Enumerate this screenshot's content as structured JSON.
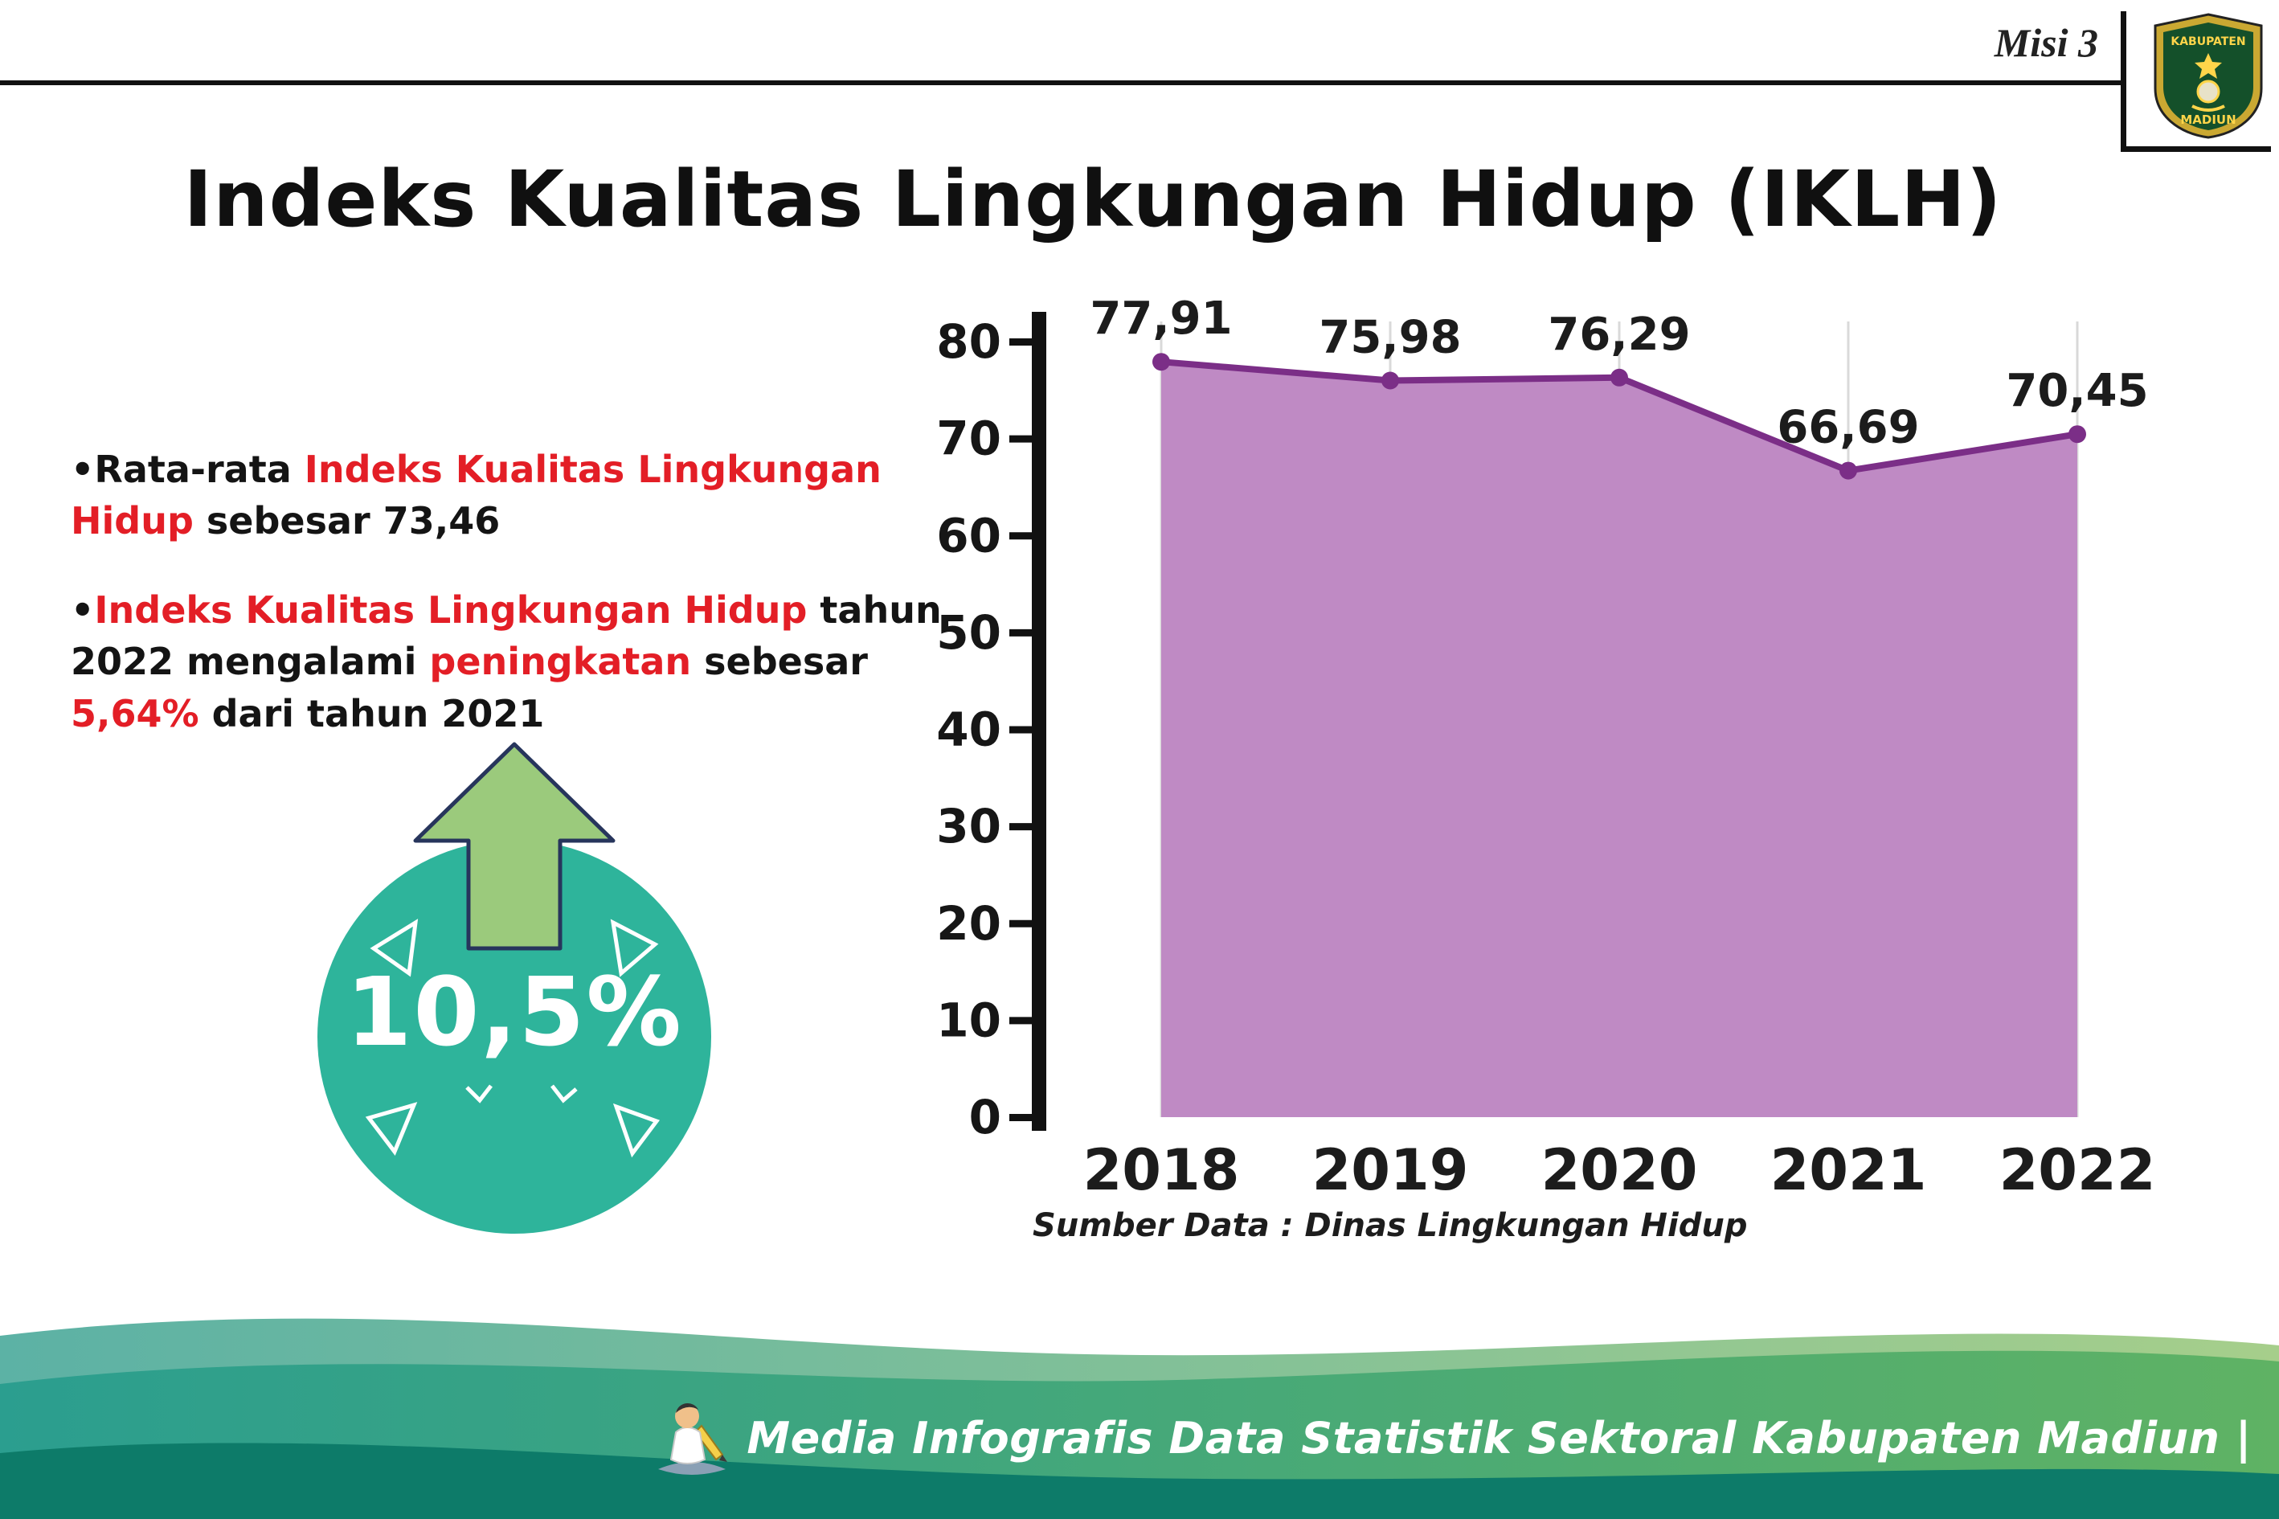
{
  "header": {
    "misi_label": "Misi 3",
    "title": "Indeks Kualitas Lingkungan Hidup (IKLH)"
  },
  "logo": {
    "name": "kabupaten-madiun-emblem",
    "top_text": "KABUPATEN",
    "bottom_text": "MADIUN"
  },
  "bullets": [
    {
      "marker": "•",
      "segments": [
        {
          "text": "Rata-rata ",
          "color": "black"
        },
        {
          "text": "Indeks Kualitas Lingkungan Hidup",
          "color": "red"
        },
        {
          "text": " sebesar 73,46",
          "color": "black"
        }
      ]
    },
    {
      "marker": "•",
      "segments": [
        {
          "text": "Indeks Kualitas Lingkungan Hidup",
          "color": "red"
        },
        {
          "text": " tahun 2022 mengalami ",
          "color": "black"
        },
        {
          "text": "peningkatan",
          "color": "red"
        },
        {
          "text": " sebesar ",
          "color": "black"
        },
        {
          "text": "5,64%",
          "color": "red"
        },
        {
          "text": " dari tahun 2021",
          "color": "black"
        }
      ]
    }
  ],
  "badge": {
    "value": "10,5%"
  },
  "chart_data": {
    "type": "area",
    "categories": [
      "2018",
      "2019",
      "2020",
      "2021",
      "2022"
    ],
    "values": [
      77.91,
      75.98,
      76.29,
      66.69,
      70.45
    ],
    "value_labels": [
      "77,91",
      "75,98",
      "76,29",
      "66,69",
      "70,45"
    ],
    "title": "",
    "xlabel": "",
    "ylabel": "",
    "ylim": [
      0,
      80
    ],
    "yticks": [
      0,
      10,
      20,
      30,
      40,
      50,
      60,
      70,
      80
    ],
    "grid": "vertical-light",
    "legend": "none",
    "fill_color": "#bf8ac4",
    "line_color": "#7b2e87",
    "grid_color": "#d9d9d9",
    "axis_color": "#111111"
  },
  "caption": "Sumber Data : Dinas Lingkungan Hidup",
  "footer": {
    "text": "Media Infografis Data Statistik Sektoral Kabupaten Madiun |"
  },
  "colors": {
    "accent_red": "#e31e26",
    "badge_teal": "#2eb49b",
    "arrow_green": "#9bca7c",
    "footer_dark": "#0d7b69"
  }
}
